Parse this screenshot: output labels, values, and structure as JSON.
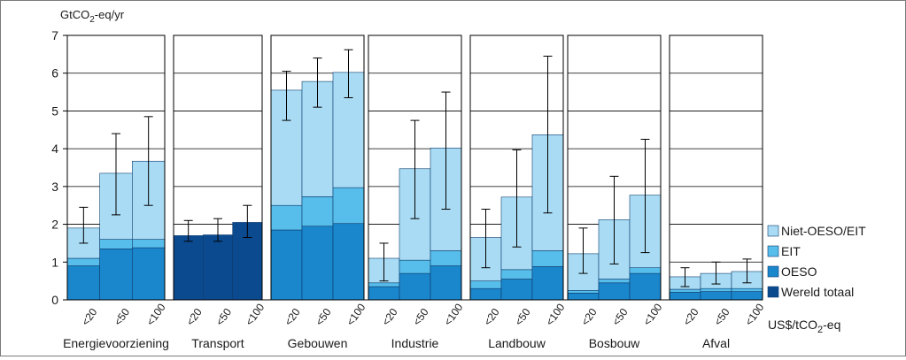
{
  "chart_data": {
    "type": "bar",
    "ylabel_main": "GtCO",
    "ylabel_sub": "2",
    "ylabel_tail": "-eq/yr",
    "xunit_main": "US$/tCO",
    "xunit_sub": "2",
    "xunit_tail": "-eq",
    "ylim": [
      0,
      7
    ],
    "yticks": [
      "0",
      "1",
      "2",
      "3",
      "4",
      "5",
      "6",
      "7"
    ],
    "grid": true,
    "legend_position": "right",
    "price_labels": [
      "<20",
      "<50",
      "<100"
    ],
    "series": [
      {
        "key": "world",
        "name": "Wereld totaal",
        "color": "#0b4a8f"
      },
      {
        "key": "oecd",
        "name": "OESO",
        "color": "#1a86cc"
      },
      {
        "key": "eit",
        "name": "EIT",
        "color": "#57bdea"
      },
      {
        "key": "nonoecd",
        "name": "Niet-OESO/EIT",
        "color": "#a9dcf4"
      }
    ],
    "sectors": [
      {
        "name": "Energievoorziening",
        "bars": [
          {
            "oecd": 0.9,
            "eit": 0.2,
            "nonoecd": 0.8,
            "err": [
              1.5,
              2.45
            ]
          },
          {
            "oecd": 1.35,
            "eit": 0.25,
            "nonoecd": 1.75,
            "err": [
              2.25,
              4.4
            ]
          },
          {
            "oecd": 1.38,
            "eit": 0.22,
            "nonoecd": 2.07,
            "err": [
              2.5,
              4.85
            ]
          }
        ]
      },
      {
        "name": "Transport",
        "bars": [
          {
            "world": 1.7,
            "err": [
              1.55,
              2.1
            ]
          },
          {
            "world": 1.72,
            "err": [
              1.55,
              2.15
            ]
          },
          {
            "world": 2.05,
            "err": [
              1.65,
              2.5
            ]
          }
        ]
      },
      {
        "name": "Gebouwen",
        "bars": [
          {
            "oecd": 1.85,
            "eit": 0.65,
            "nonoecd": 3.05,
            "err": [
              4.75,
              6.05
            ]
          },
          {
            "oecd": 1.95,
            "eit": 0.78,
            "nonoecd": 3.05,
            "err": [
              5.1,
              6.4
            ]
          },
          {
            "oecd": 2.02,
            "eit": 0.95,
            "nonoecd": 3.05,
            "err": [
              5.35,
              6.62
            ]
          }
        ]
      },
      {
        "name": "Industrie",
        "bars": [
          {
            "oecd": 0.35,
            "eit": 0.1,
            "nonoecd": 0.65,
            "err": [
              0.5,
              1.5
            ]
          },
          {
            "oecd": 0.7,
            "eit": 0.35,
            "nonoecd": 2.42,
            "err": [
              2.15,
              4.75
            ]
          },
          {
            "oecd": 0.9,
            "eit": 0.4,
            "nonoecd": 2.72,
            "err": [
              2.4,
              5.5
            ]
          }
        ]
      },
      {
        "name": "Landbouw",
        "bars": [
          {
            "oecd": 0.3,
            "eit": 0.2,
            "nonoecd": 1.15,
            "err": [
              0.85,
              2.4
            ]
          },
          {
            "oecd": 0.55,
            "eit": 0.25,
            "nonoecd": 1.92,
            "err": [
              1.4,
              3.97
            ]
          },
          {
            "oecd": 0.88,
            "eit": 0.42,
            "nonoecd": 3.07,
            "err": [
              2.3,
              6.45
            ]
          }
        ]
      },
      {
        "name": "Bosbouw",
        "bars": [
          {
            "oecd": 0.18,
            "eit": 0.07,
            "nonoecd": 0.97,
            "err": [
              0.7,
              1.9
            ]
          },
          {
            "oecd": 0.45,
            "eit": 0.1,
            "nonoecd": 1.57,
            "err": [
              0.95,
              3.27
            ]
          },
          {
            "oecd": 0.7,
            "eit": 0.15,
            "nonoecd": 1.92,
            "err": [
              1.25,
              4.25
            ]
          }
        ]
      },
      {
        "name": "Afval",
        "bars": [
          {
            "oecd": 0.2,
            "eit": 0.08,
            "nonoecd": 0.33,
            "err": [
              0.35,
              0.85
            ]
          },
          {
            "oecd": 0.22,
            "eit": 0.08,
            "nonoecd": 0.4,
            "err": [
              0.42,
              1.0
            ]
          },
          {
            "oecd": 0.22,
            "eit": 0.08,
            "nonoecd": 0.45,
            "err": [
              0.45,
              1.08
            ]
          }
        ]
      }
    ]
  }
}
